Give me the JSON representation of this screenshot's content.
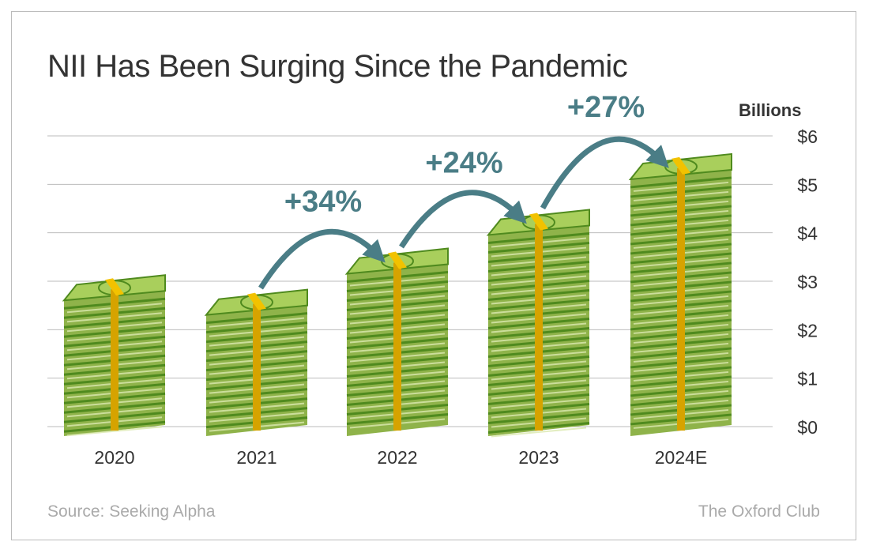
{
  "chart_data": {
    "type": "bar",
    "title": "NII Has Been Surging Since the Pandemic",
    "ylabel": "Billions",
    "categories": [
      "2020",
      "2021",
      "2022",
      "2023",
      "2024E"
    ],
    "values": [
      2.8,
      2.5,
      3.35,
      4.15,
      5.3
    ],
    "ylim": [
      0,
      6
    ],
    "yticks": [
      "$0",
      "$1",
      "$2",
      "$3",
      "$4",
      "$5",
      "$6"
    ],
    "grid": true,
    "annotations": [
      {
        "from": "2021",
        "to": "2022",
        "label": "+34%"
      },
      {
        "from": "2022",
        "to": "2023",
        "label": "+24%"
      },
      {
        "from": "2023",
        "to": "2024E",
        "label": "+27%"
      }
    ]
  },
  "source": "Source: Seeking Alpha",
  "brand": "The Oxford Club",
  "colors": {
    "accent": "#4a7d86",
    "bill": "#a9cf5c",
    "billDark": "#4f8a1e",
    "band": "#d6a300",
    "grid": "#bbbbbb"
  }
}
